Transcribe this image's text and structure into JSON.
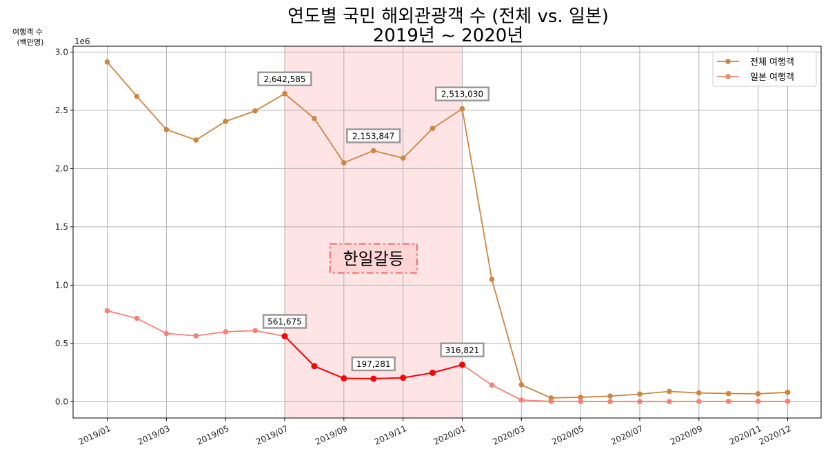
{
  "chart_data": {
    "type": "line",
    "title": [
      "연도별 국민 해외관광객 수 (전체 vs. 일본)",
      "2019년 ~ 2020년"
    ],
    "ylabel": [
      "여행객 수",
      "(백만명)"
    ],
    "y_offset_label": "1e6",
    "ylim": [
      -0.14,
      3.05
    ],
    "y_ticks": [
      "0.0",
      "0.5",
      "1.0",
      "1.5",
      "2.0",
      "2.5",
      "3.0"
    ],
    "x_tick_labels": [
      "2019/01",
      "2019/03",
      "2019/05",
      "2019/07",
      "2019/09",
      "2019/11",
      "2020/01",
      "2020/03",
      "2020/05",
      "2020/07",
      "2020/09",
      "2020/11",
      "2020/12"
    ],
    "x": [
      "2019/01",
      "2019/02",
      "2019/03",
      "2019/04",
      "2019/05",
      "2019/06",
      "2019/07",
      "2019/08",
      "2019/09",
      "2019/10",
      "2019/11",
      "2019/12",
      "2020/01",
      "2020/02",
      "2020/03",
      "2020/04",
      "2020/05",
      "2020/06",
      "2020/07",
      "2020/08",
      "2020/09",
      "2020/10",
      "2020/11",
      "2020/12"
    ],
    "series": [
      {
        "name": "전체 여행객",
        "color": "#cd853f",
        "values": [
          2.915,
          2.62,
          2.335,
          2.245,
          2.405,
          2.495,
          2.642585,
          2.43,
          2.05,
          2.153847,
          2.09,
          2.345,
          2.51303,
          1.05,
          0.145,
          0.032,
          0.038,
          0.048,
          0.065,
          0.088,
          0.075,
          0.07,
          0.068,
          0.08
        ]
      },
      {
        "name": "일본 여행객",
        "color": "#fa8072",
        "highlight_color": "#ff0000",
        "values": [
          0.78,
          0.715,
          0.585,
          0.565,
          0.6,
          0.61,
          0.561675,
          0.305,
          0.2,
          0.197281,
          0.205,
          0.248,
          0.316821,
          0.143,
          0.014,
          0.003,
          0.002,
          0.001,
          0.001,
          0.001,
          0.002,
          0.003,
          0.003,
          0.003
        ]
      }
    ],
    "highlight_region": {
      "start": "2019/07",
      "end": "2020/01",
      "label": "한일갈등",
      "color": "#ffe4e6"
    },
    "annotations": [
      {
        "series": 0,
        "x": "2019/07",
        "text": "2,642,585"
      },
      {
        "series": 0,
        "x": "2019/10",
        "text": "2,153,847"
      },
      {
        "series": 0,
        "x": "2020/01",
        "text": "2,513,030"
      },
      {
        "series": 1,
        "x": "2019/07",
        "text": "561,675"
      },
      {
        "series": 1,
        "x": "2019/10",
        "text": "197,281"
      },
      {
        "series": 1,
        "x": "2020/01",
        "text": "316,821"
      }
    ],
    "grid": true,
    "legend_position": "top-right"
  }
}
